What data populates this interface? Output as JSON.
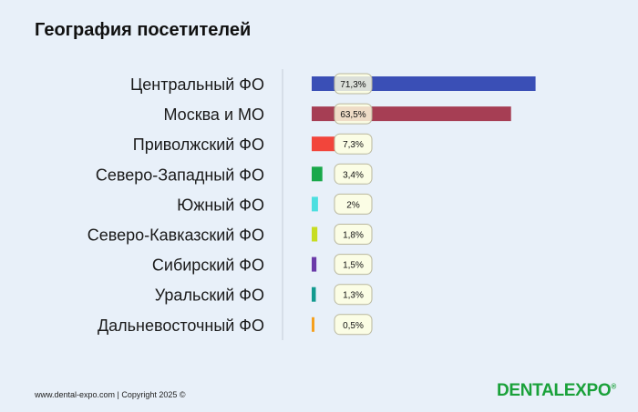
{
  "chart_data": {
    "type": "bar",
    "orientation": "horizontal",
    "title": "География посетителей",
    "categories": [
      "Центральный ФО",
      "Москва и МО",
      "Приволжский ФО",
      "Северо-Западный ФО",
      "Южный ФО",
      "Северо-Кавказский ФО",
      "Сибирский ФО",
      "Уральский ФО",
      "Дальневосточный ФО"
    ],
    "values": [
      71.3,
      63.5,
      7.3,
      3.4,
      2,
      1.8,
      1.5,
      1.3,
      0.5
    ],
    "data_labels": [
      "71,3%",
      "63,5%",
      "7,3%",
      "3,4%",
      "2%",
      "1,8%",
      "1,5%",
      "1,3%",
      "0,5%"
    ],
    "colors": [
      "#3a4fb6",
      "#a63e54",
      "#f2453b",
      "#19a84a",
      "#4cdfe0",
      "#c7dd22",
      "#6a3aa8",
      "#129a8f",
      "#f5a01e"
    ],
    "xlim": [
      0,
      72
    ],
    "grid": false,
    "legend": "none"
  },
  "footer": {
    "text": "www.dental-expo.com | Copyright 2025 ©"
  },
  "logo": {
    "text": "DENTALEXPO",
    "mark": "®"
  }
}
